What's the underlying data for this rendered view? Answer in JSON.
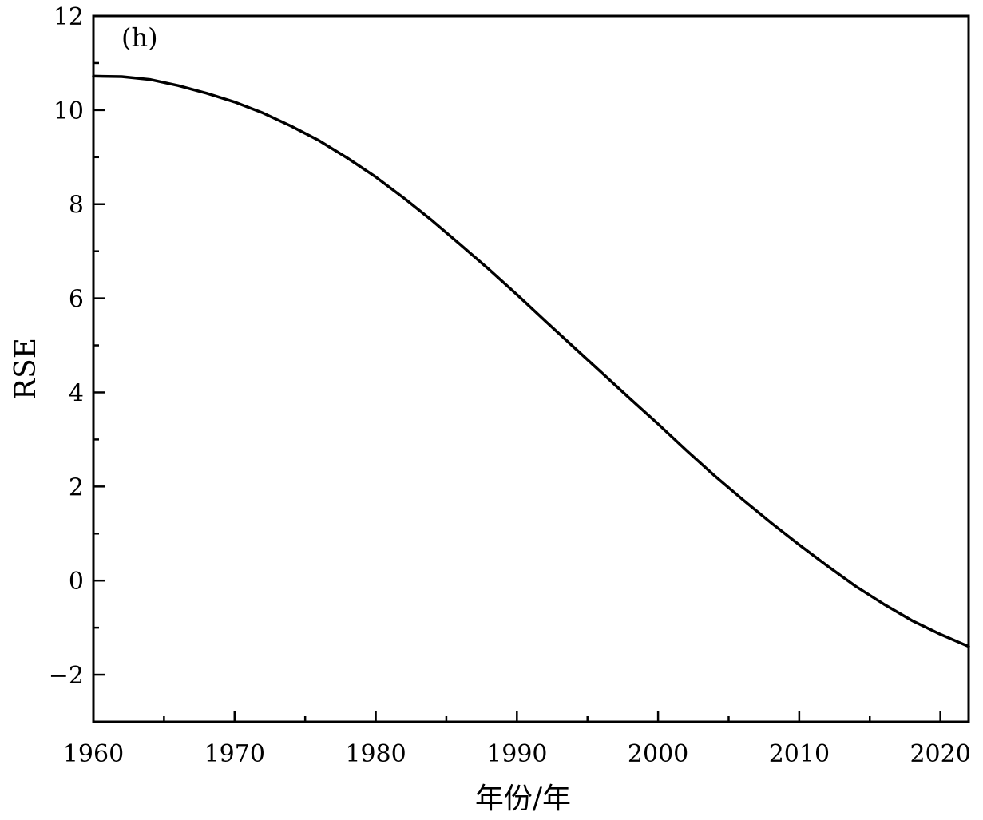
{
  "chart_data": {
    "type": "line",
    "title": "",
    "panel_label": "(h)",
    "xlabel": "年份/年",
    "ylabel": "RSE",
    "xlim": [
      1960,
      2022
    ],
    "ylim": [
      -3,
      12
    ],
    "x_ticks": [
      1960,
      1970,
      1980,
      1990,
      2000,
      2010,
      2020
    ],
    "y_ticks": [
      -2,
      0,
      2,
      4,
      6,
      8,
      10,
      12
    ],
    "x_tick_labels": [
      "1960",
      "1970",
      "1980",
      "1990",
      "2000",
      "2010",
      "2020"
    ],
    "y_tick_labels": [
      "−2",
      "0",
      "2",
      "4",
      "6",
      "8",
      "10",
      "12"
    ],
    "grid": false,
    "legend": "none",
    "line_color": "#000000",
    "series": [
      {
        "x": [
          1960,
          1962,
          1964,
          1966,
          1968,
          1970,
          1972,
          1974,
          1976,
          1978,
          1980,
          1982,
          1984,
          1986,
          1988,
          1990,
          1992,
          1994,
          1996,
          1998,
          2000,
          2002,
          2004,
          2006,
          2008,
          2010,
          2012,
          2014,
          2016,
          2018,
          2020,
          2022
        ],
        "values": [
          10.72,
          10.71,
          10.65,
          10.52,
          10.36,
          10.17,
          9.94,
          9.66,
          9.35,
          8.98,
          8.58,
          8.13,
          7.65,
          7.14,
          6.62,
          6.08,
          5.52,
          4.97,
          4.42,
          3.87,
          3.33,
          2.77,
          2.23,
          1.72,
          1.23,
          0.76,
          0.31,
          -0.12,
          -0.5,
          -0.85,
          -1.14,
          -1.4
        ]
      }
    ]
  }
}
